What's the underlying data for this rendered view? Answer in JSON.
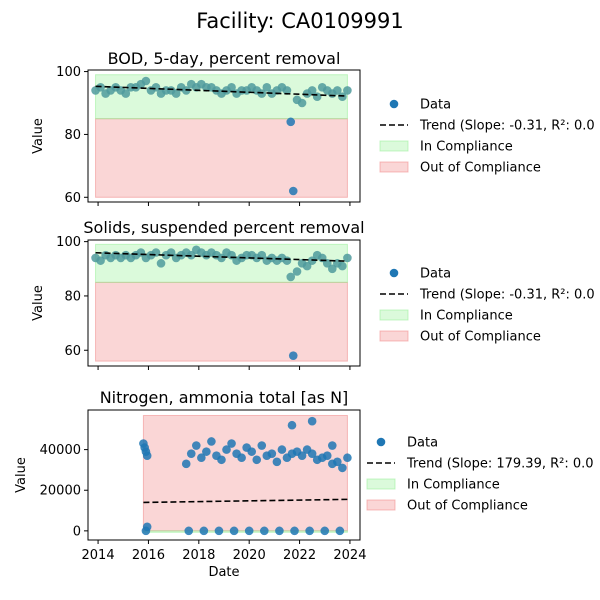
{
  "figure_title": "Facility: CA0109991",
  "legend_labels": {
    "data": "Data",
    "in": "In Compliance",
    "out": "Out of Compliance"
  },
  "colors": {
    "data_point": "#1f77b4",
    "data_point_alt": "#4f9a9c",
    "trend": "#000000",
    "in_compliance": "#90ee90",
    "out_compliance": "#f08080"
  },
  "chart_data": [
    {
      "type": "scatter",
      "title": "BOD, 5-day, percent removal",
      "xlabel": "",
      "ylabel": "Value",
      "xlim": [
        2013.6,
        2024.4
      ],
      "ylim": [
        58.5,
        100.5
      ],
      "yticks": [
        60,
        80,
        100
      ],
      "show_xticklabels": false,
      "in_band": {
        "x0": 2013.9,
        "x1": 2023.9,
        "y0": 85,
        "y1": 99
      },
      "out_band": {
        "x0": 2013.9,
        "x1": 2023.9,
        "y0": 60,
        "y1": 85
      },
      "trend": {
        "label": "Trend (Slope: -0.31, R²: 0.0",
        "x": [
          2013.9,
          2023.9
        ],
        "y": [
          95.3,
          92.2
        ]
      },
      "series": [
        {
          "name": "Data",
          "x": [
            2013.9,
            2014.1,
            2014.3,
            2014.5,
            2014.7,
            2014.9,
            2015.1,
            2015.3,
            2015.5,
            2015.7,
            2015.9,
            2016.1,
            2016.3,
            2016.5,
            2016.7,
            2016.9,
            2017.1,
            2017.3,
            2017.5,
            2017.7,
            2017.9,
            2018.1,
            2018.3,
            2018.5,
            2018.7,
            2018.9,
            2019.1,
            2019.3,
            2019.5,
            2019.7,
            2019.9,
            2020.1,
            2020.3,
            2020.5,
            2020.7,
            2020.9,
            2021.1,
            2021.3,
            2021.5,
            2021.65,
            2021.75,
            2021.9,
            2022.1,
            2022.3,
            2022.5,
            2022.7,
            2022.9,
            2023.1,
            2023.3,
            2023.5,
            2023.7,
            2023.9
          ],
          "y": [
            94,
            95,
            93,
            94,
            95,
            94,
            93,
            95,
            95,
            96,
            97,
            94,
            95,
            93,
            94,
            94,
            93,
            95,
            94,
            96,
            95,
            96,
            95,
            95,
            94,
            93,
            94,
            95,
            93,
            94,
            94,
            95,
            94,
            93,
            95,
            93,
            94,
            95,
            94,
            84,
            62,
            91,
            90,
            93,
            94,
            92,
            95,
            94,
            93,
            94,
            92,
            94
          ]
        }
      ]
    },
    {
      "type": "scatter",
      "title": "Solids, suspended percent removal",
      "xlabel": "",
      "ylabel": "Value",
      "xlim": [
        2013.6,
        2024.4
      ],
      "ylim": [
        54.2,
        100.6
      ],
      "yticks": [
        60,
        80,
        100
      ],
      "show_xticklabels": false,
      "in_band": {
        "x0": 2013.9,
        "x1": 2023.9,
        "y0": 85,
        "y1": 99
      },
      "out_band": {
        "x0": 2013.9,
        "x1": 2023.9,
        "y0": 56,
        "y1": 85
      },
      "trend": {
        "label": "Trend (Slope: -0.31, R²: 0.0",
        "x": [
          2013.9,
          2023.9
        ],
        "y": [
          95.9,
          92.8
        ]
      },
      "series": [
        {
          "name": "Data",
          "x": [
            2013.9,
            2014.1,
            2014.3,
            2014.5,
            2014.7,
            2014.9,
            2015.1,
            2015.3,
            2015.5,
            2015.7,
            2015.9,
            2016.1,
            2016.3,
            2016.5,
            2016.7,
            2016.9,
            2017.1,
            2017.3,
            2017.5,
            2017.7,
            2017.9,
            2018.1,
            2018.3,
            2018.5,
            2018.7,
            2018.9,
            2019.1,
            2019.3,
            2019.5,
            2019.7,
            2019.9,
            2020.1,
            2020.3,
            2020.5,
            2020.7,
            2020.9,
            2021.1,
            2021.3,
            2021.5,
            2021.65,
            2021.75,
            2021.9,
            2022.1,
            2022.3,
            2022.5,
            2022.7,
            2022.9,
            2023.1,
            2023.3,
            2023.5,
            2023.7,
            2023.9
          ],
          "y": [
            94,
            93,
            95,
            94,
            95,
            94,
            95,
            94,
            95,
            96,
            94,
            95,
            96,
            92,
            95,
            96,
            94,
            95,
            96,
            95,
            97,
            96,
            95,
            96,
            95,
            94,
            96,
            95,
            93,
            94,
            95,
            95,
            94,
            95,
            93,
            94,
            93,
            94,
            93,
            87,
            58,
            89,
            92,
            91,
            93,
            95,
            94,
            92,
            90,
            92,
            91,
            94
          ]
        }
      ]
    },
    {
      "type": "scatter",
      "title": "Nitrogen, ammonia total [as N]",
      "xlabel": "Date",
      "ylabel": "Value",
      "xlim": [
        2013.6,
        2024.4
      ],
      "ylim": [
        -4500,
        59500
      ],
      "yticks": [
        0,
        20000,
        40000
      ],
      "xticks": [
        2014,
        2016,
        2018,
        2020,
        2022,
        2024
      ],
      "show_xticklabels": true,
      "in_band": {
        "x0": 2015.8,
        "x1": 2023.9,
        "y0": -700,
        "y1": 0
      },
      "out_band": {
        "x0": 2015.8,
        "x1": 2023.9,
        "y0": 0,
        "y1": 56800
      },
      "trend": {
        "label": "Trend (Slope: 179.39, R²: 0.0",
        "x": [
          2015.8,
          2023.9
        ],
        "y": [
          14000,
          15500
        ]
      },
      "series": [
        {
          "name": "Data",
          "x": [
            2015.8,
            2015.85,
            2015.9,
            2015.95,
            2017.5,
            2017.7,
            2017.9,
            2018.1,
            2018.3,
            2018.5,
            2018.7,
            2018.9,
            2019.1,
            2019.3,
            2019.5,
            2019.7,
            2019.9,
            2020.1,
            2020.3,
            2020.5,
            2020.7,
            2020.9,
            2021.1,
            2021.3,
            2021.5,
            2021.7,
            2021.9,
            2022.1,
            2022.3,
            2022.5,
            2022.7,
            2022.9,
            2023.1,
            2023.3,
            2023.5,
            2023.7,
            2023.9,
            2015.9,
            2015.95,
            2017.6,
            2018.2,
            2018.8,
            2019.4,
            2020.0,
            2020.6,
            2021.2,
            2021.8,
            2022.4,
            2023.0,
            2023.6,
            2021.7,
            2022.5,
            2023.3
          ],
          "y": [
            43000,
            41000,
            39000,
            37000,
            33000,
            38000,
            42000,
            36000,
            39000,
            44000,
            37000,
            35000,
            40000,
            43000,
            38000,
            36000,
            41000,
            39000,
            35000,
            42000,
            37000,
            38000,
            34000,
            40000,
            36000,
            38000,
            39000,
            37000,
            40000,
            38000,
            35000,
            36000,
            37000,
            42000,
            34000,
            31000,
            36000,
            0,
            2000,
            0,
            0,
            0,
            0,
            0,
            0,
            0,
            0,
            0,
            0,
            0,
            52000,
            54000,
            33000
          ]
        }
      ]
    }
  ]
}
